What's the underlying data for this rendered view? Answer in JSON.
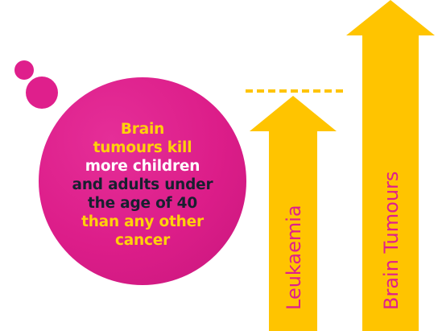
{
  "infographic": {
    "headline_lines": [
      {
        "text": "Brain",
        "tone": "yellow"
      },
      {
        "text": "tumours kill",
        "tone": "yellow"
      },
      {
        "text": "more children",
        "tone": "white"
      },
      {
        "text": "and adults under",
        "tone": "dark"
      },
      {
        "text": "the age of 40",
        "tone": "dark"
      },
      {
        "text": "than any other",
        "tone": "yellow"
      },
      {
        "text": "cancer",
        "tone": "yellow"
      }
    ],
    "colors": {
      "magenta": "#df1f8c",
      "yellow": "#ffc400",
      "dark": "#17202f",
      "white": "#ffffff"
    }
  },
  "chart_data": {
    "type": "bar",
    "categories": [
      "Leukaemia",
      "Brain Tumours"
    ],
    "values": [
      0.73,
      1.0
    ],
    "reference_line": {
      "value": 0.73,
      "style": "dashed"
    },
    "xlabel": "",
    "ylabel": "",
    "ylim": [
      0,
      1
    ]
  }
}
